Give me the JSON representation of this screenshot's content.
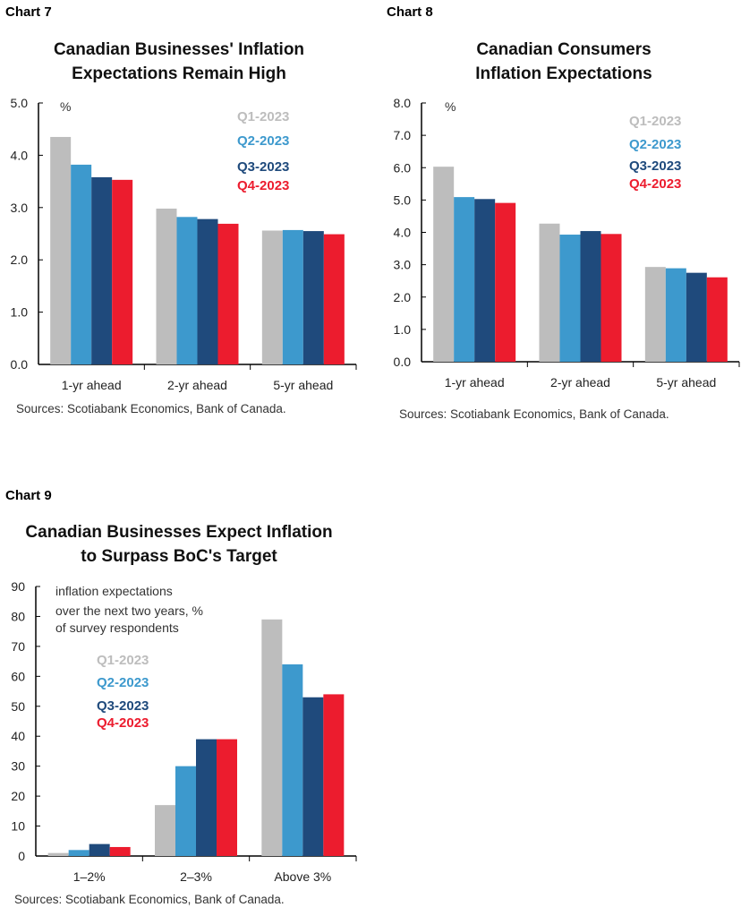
{
  "colors": {
    "Q1-2023": "#BDBDBD",
    "Q2-2023": "#3D99CD",
    "Q3-2023": "#1F4A7C",
    "Q4-2023": "#EC1C2E"
  },
  "chart_data": [
    {
      "label": "Chart 7",
      "type": "bar",
      "title": [
        "Canadian Businesses' Inflation",
        "Expectations Remain High"
      ],
      "ylabel": "%",
      "ylim": [
        0,
        5
      ],
      "yticks": [
        "0.0",
        "1.0",
        "2.0",
        "3.0",
        "4.0",
        "5.0"
      ],
      "categories": [
        "1-yr ahead",
        "2-yr ahead",
        "5-yr ahead"
      ],
      "series": [
        {
          "name": "Q1-2023",
          "values": [
            4.35,
            2.98,
            2.56
          ]
        },
        {
          "name": "Q2-2023",
          "values": [
            3.82,
            2.82,
            2.57
          ]
        },
        {
          "name": "Q3-2023",
          "values": [
            3.58,
            2.78,
            2.55
          ]
        },
        {
          "name": "Q4-2023",
          "values": [
            3.53,
            2.69,
            2.49
          ]
        }
      ],
      "legend": "top-right",
      "source": "Sources: Scotiabank Economics, Bank of Canada."
    },
    {
      "label": "Chart 8",
      "type": "bar",
      "title": [
        "Canadian Consumers",
        "Inflation Expectations"
      ],
      "ylabel": "%",
      "ylim": [
        0,
        8
      ],
      "yticks": [
        "0.0",
        "1.0",
        "2.0",
        "3.0",
        "4.0",
        "5.0",
        "6.0",
        "7.0",
        "8.0"
      ],
      "categories": [
        "1-yr ahead",
        "2-yr ahead",
        "5-yr ahead"
      ],
      "series": [
        {
          "name": "Q1-2023",
          "values": [
            6.03,
            4.27,
            2.93
          ]
        },
        {
          "name": "Q2-2023",
          "values": [
            5.09,
            3.93,
            2.89
          ]
        },
        {
          "name": "Q3-2023",
          "values": [
            5.03,
            4.04,
            2.75
          ]
        },
        {
          "name": "Q4-2023",
          "values": [
            4.91,
            3.95,
            2.61
          ]
        }
      ],
      "legend": "top-right",
      "source": "Sources: Scotiabank Economics, Bank of Canada."
    },
    {
      "label": "Chart 9",
      "type": "bar",
      "title": [
        "Canadian Businesses Expect Inflation",
        "to Surpass BoC's Target"
      ],
      "ylabel": [
        "inflation expectations",
        "over the next two years, %",
        "of survey respondents"
      ],
      "ylim": [
        0,
        90
      ],
      "yticks": [
        "0",
        "10",
        "20",
        "30",
        "40",
        "50",
        "60",
        "70",
        "80",
        "90"
      ],
      "categories": [
        "1–2%",
        "2–3%",
        "Above 3%"
      ],
      "series": [
        {
          "name": "Q1-2023",
          "values": [
            1,
            17,
            79
          ]
        },
        {
          "name": "Q2-2023",
          "values": [
            2,
            30,
            64
          ]
        },
        {
          "name": "Q3-2023",
          "values": [
            4,
            39,
            53
          ]
        },
        {
          "name": "Q4-2023",
          "values": [
            3,
            39,
            54
          ]
        }
      ],
      "legend": "left",
      "source": "Sources: Scotiabank Economics, Bank of Canada."
    }
  ]
}
